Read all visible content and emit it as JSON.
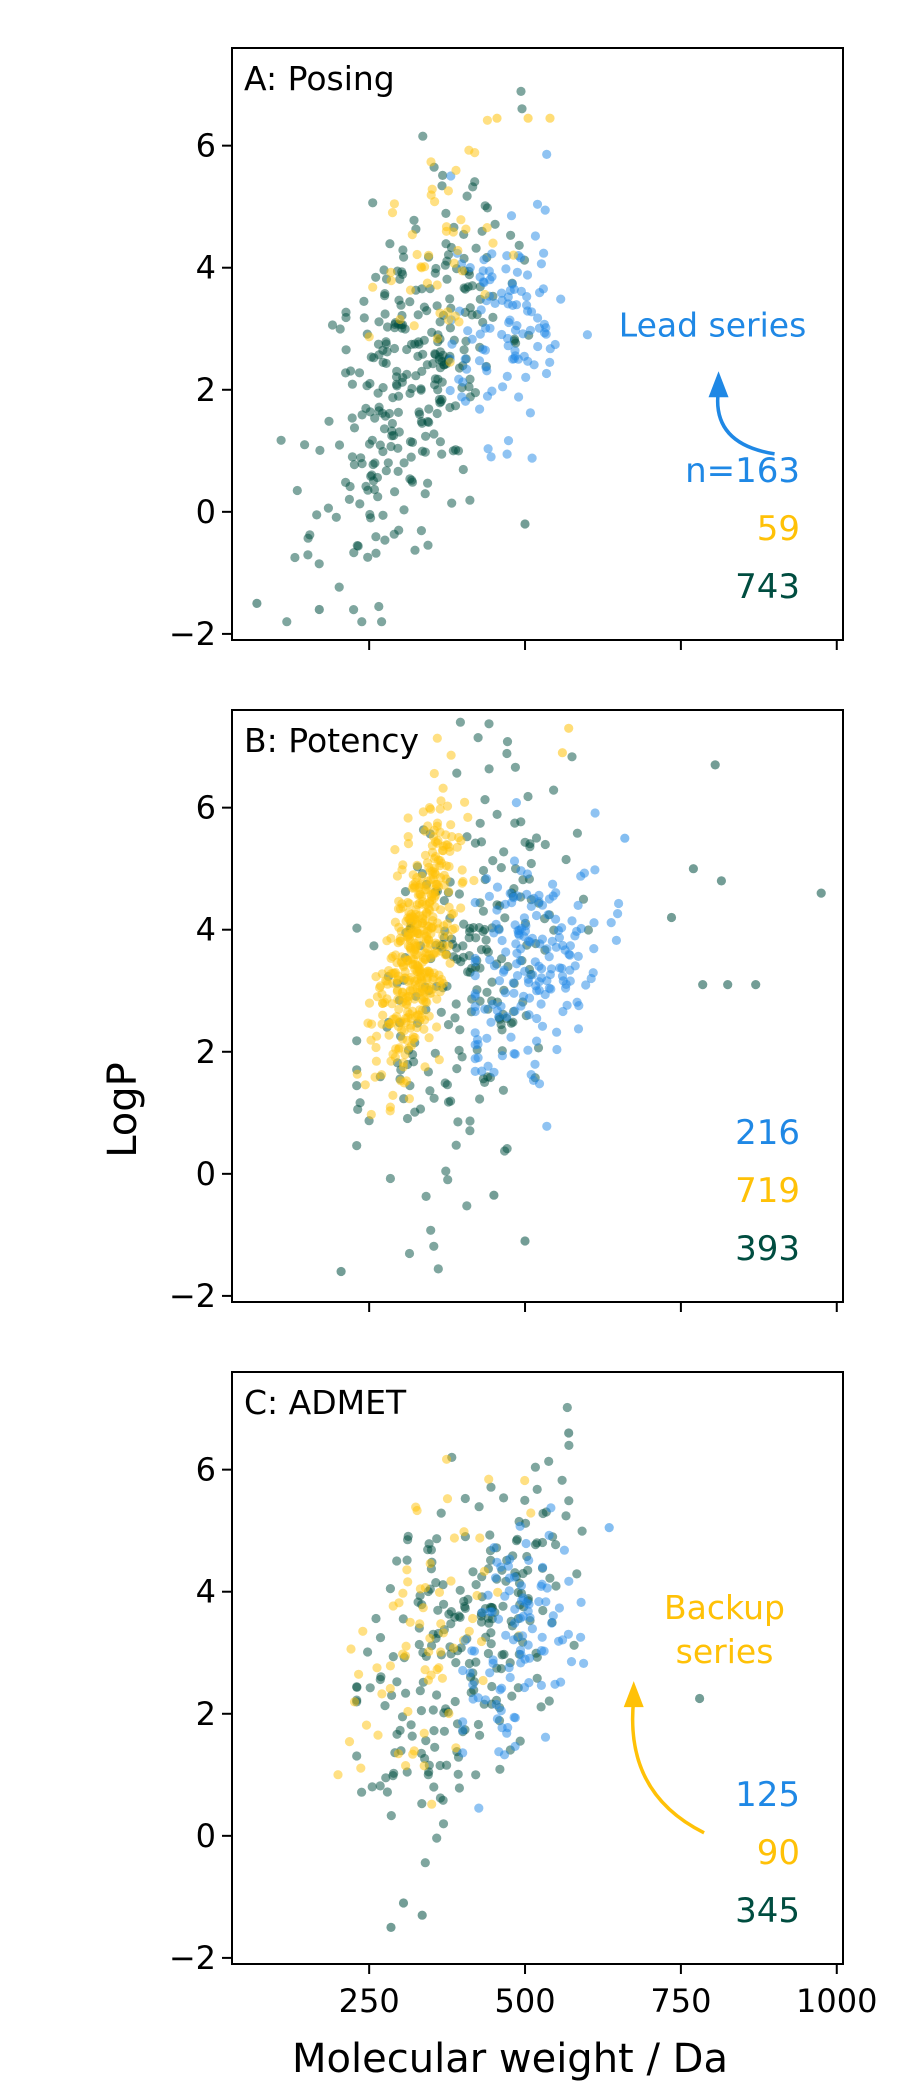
{
  "figure": {
    "ylabel": "LogP",
    "xlabel": "Molecular weight / Da"
  },
  "colors": {
    "blue": "#1f88e5",
    "yellow": "#ffc107",
    "green": "#004d40",
    "axis": "#000000"
  },
  "chart_data": [
    {
      "type": "scatter",
      "title": "A: Posing",
      "xlim": [
        30,
        1010
      ],
      "ylim": [
        -2.1,
        7.6
      ],
      "xticks": [
        250,
        500,
        750,
        1000
      ],
      "yticks": [
        -2,
        0,
        2,
        4,
        6
      ],
      "grid": false,
      "counts": [
        {
          "text": "n=163",
          "color": "blue"
        },
        {
          "text": "59",
          "color": "yellow"
        },
        {
          "text": "743",
          "color": "green"
        }
      ],
      "annotation": {
        "text": "Lead series",
        "color": "blue",
        "x": 820,
        "y": 2.5
      },
      "seed": 11,
      "clusters": [
        {
          "color": "green",
          "n": 300,
          "mx": 320,
          "sx": 75,
          "my": 2.3,
          "sy": 1.35,
          "slope": 0.011,
          "xmin": 60,
          "xmax": 560
        },
        {
          "color": "blue",
          "n": 110,
          "mx": 470,
          "sx": 50,
          "my": 3.1,
          "sy": 0.95,
          "slope": 0.004,
          "xmin": 380,
          "xmax": 600
        },
        {
          "color": "yellow",
          "n": 45,
          "mx": 350,
          "sx": 60,
          "my": 4.4,
          "sy": 1.0,
          "slope": 0.008,
          "xmin": 250,
          "xmax": 560
        }
      ],
      "extra_points": [
        {
          "color": "yellow",
          "x": 455,
          "y": 6.45
        },
        {
          "color": "yellow",
          "x": 505,
          "y": 6.45
        },
        {
          "color": "yellow",
          "x": 540,
          "y": 6.45
        },
        {
          "color": "green",
          "x": 500,
          "y": -0.2
        },
        {
          "color": "green",
          "x": 170,
          "y": -1.6
        },
        {
          "color": "green",
          "x": 70,
          "y": -1.5
        }
      ]
    },
    {
      "type": "scatter",
      "title": "B: Potency",
      "xlim": [
        30,
        1010
      ],
      "ylim": [
        -2.1,
        7.6
      ],
      "xticks": [
        250,
        500,
        750,
        1000
      ],
      "yticks": [
        -2,
        0,
        2,
        4,
        6
      ],
      "grid": false,
      "counts": [
        {
          "text": "216",
          "color": "blue"
        },
        {
          "text": "719",
          "color": "yellow"
        },
        {
          "text": "393",
          "color": "green"
        }
      ],
      "annotation": null,
      "seed": 23,
      "clusters": [
        {
          "color": "green",
          "n": 220,
          "mx": 400,
          "sx": 80,
          "my": 3.2,
          "sy": 1.5,
          "slope": 0.008,
          "xmin": 230,
          "xmax": 620
        },
        {
          "color": "yellow",
          "n": 420,
          "mx": 325,
          "sx": 32,
          "my": 3.6,
          "sy": 0.9,
          "slope": 0.02,
          "xmin": 220,
          "xmax": 570
        },
        {
          "color": "blue",
          "n": 170,
          "mx": 510,
          "sx": 55,
          "my": 3.4,
          "sy": 0.85,
          "slope": 0.003,
          "xmin": 420,
          "xmax": 680
        }
      ],
      "extra_points": [
        {
          "color": "green",
          "x": 805,
          "y": 6.7
        },
        {
          "color": "green",
          "x": 975,
          "y": 4.6
        },
        {
          "color": "green",
          "x": 770,
          "y": 5.0
        },
        {
          "color": "green",
          "x": 815,
          "y": 4.8
        },
        {
          "color": "green",
          "x": 735,
          "y": 4.2
        },
        {
          "color": "green",
          "x": 785,
          "y": 3.1
        },
        {
          "color": "green",
          "x": 825,
          "y": 3.1
        },
        {
          "color": "green",
          "x": 870,
          "y": 3.1
        },
        {
          "color": "green",
          "x": 205,
          "y": -1.6
        },
        {
          "color": "green",
          "x": 500,
          "y": -1.1
        },
        {
          "color": "green",
          "x": 450,
          "y": -0.35
        },
        {
          "color": "yellow",
          "x": 570,
          "y": 7.3
        },
        {
          "color": "yellow",
          "x": 560,
          "y": 6.9
        },
        {
          "color": "blue",
          "x": 660,
          "y": 5.5
        }
      ]
    },
    {
      "type": "scatter",
      "title": "C: ADMET",
      "xlim": [
        30,
        1010
      ],
      "ylim": [
        -2.1,
        7.6
      ],
      "xticks": [
        250,
        500,
        750,
        1000
      ],
      "yticks": [
        -2,
        0,
        2,
        4,
        6
      ],
      "grid": false,
      "counts": [
        {
          "text": "125",
          "color": "blue"
        },
        {
          "text": "90",
          "color": "yellow"
        },
        {
          "text": "345",
          "color": "green"
        }
      ],
      "annotation": {
        "text": "Backup series",
        "color": "yellow",
        "x": 700,
        "y": 2.6
      },
      "seed": 37,
      "clusters": [
        {
          "color": "green",
          "n": 230,
          "mx": 400,
          "sx": 80,
          "my": 3.2,
          "sy": 1.3,
          "slope": 0.009,
          "xmin": 230,
          "xmax": 620
        },
        {
          "color": "yellow",
          "n": 70,
          "mx": 350,
          "sx": 70,
          "my": 3.6,
          "sy": 1.1,
          "slope": 0.009,
          "xmin": 200,
          "xmax": 560
        },
        {
          "color": "blue",
          "n": 100,
          "mx": 490,
          "sx": 45,
          "my": 3.2,
          "sy": 0.85,
          "slope": 0.004,
          "xmin": 400,
          "xmax": 640
        }
      ],
      "extra_points": [
        {
          "color": "green",
          "x": 285,
          "y": -1.5
        },
        {
          "color": "green",
          "x": 305,
          "y": -1.1
        },
        {
          "color": "green",
          "x": 335,
          "y": -1.3
        },
        {
          "color": "green",
          "x": 780,
          "y": 2.25
        },
        {
          "color": "green",
          "x": 570,
          "y": 6.6
        },
        {
          "color": "blue",
          "x": 635,
          "y": 5.05
        }
      ]
    }
  ]
}
